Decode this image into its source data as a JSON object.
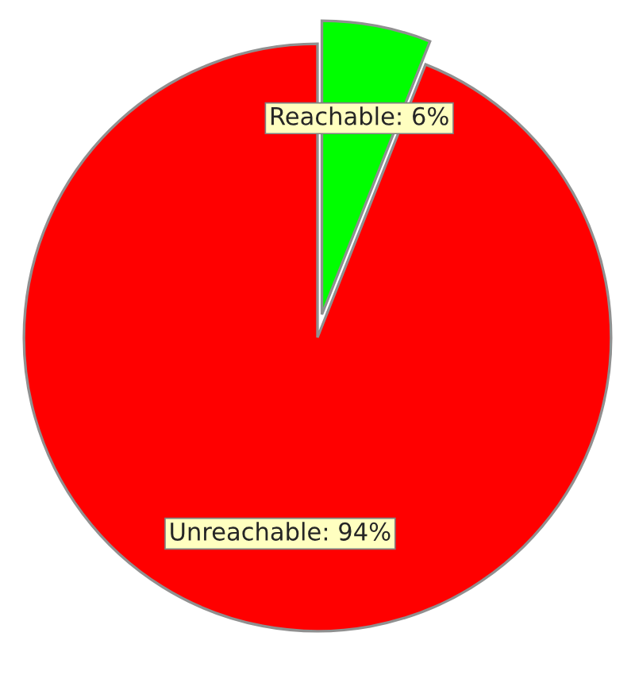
{
  "chart_data": {
    "type": "pie",
    "categories": [
      "Reachable",
      "Unreachable"
    ],
    "values": [
      6,
      94
    ],
    "value_labels": [
      "6%",
      "94%"
    ],
    "colors": [
      "#00ff00",
      "#ff0000"
    ]
  }
}
